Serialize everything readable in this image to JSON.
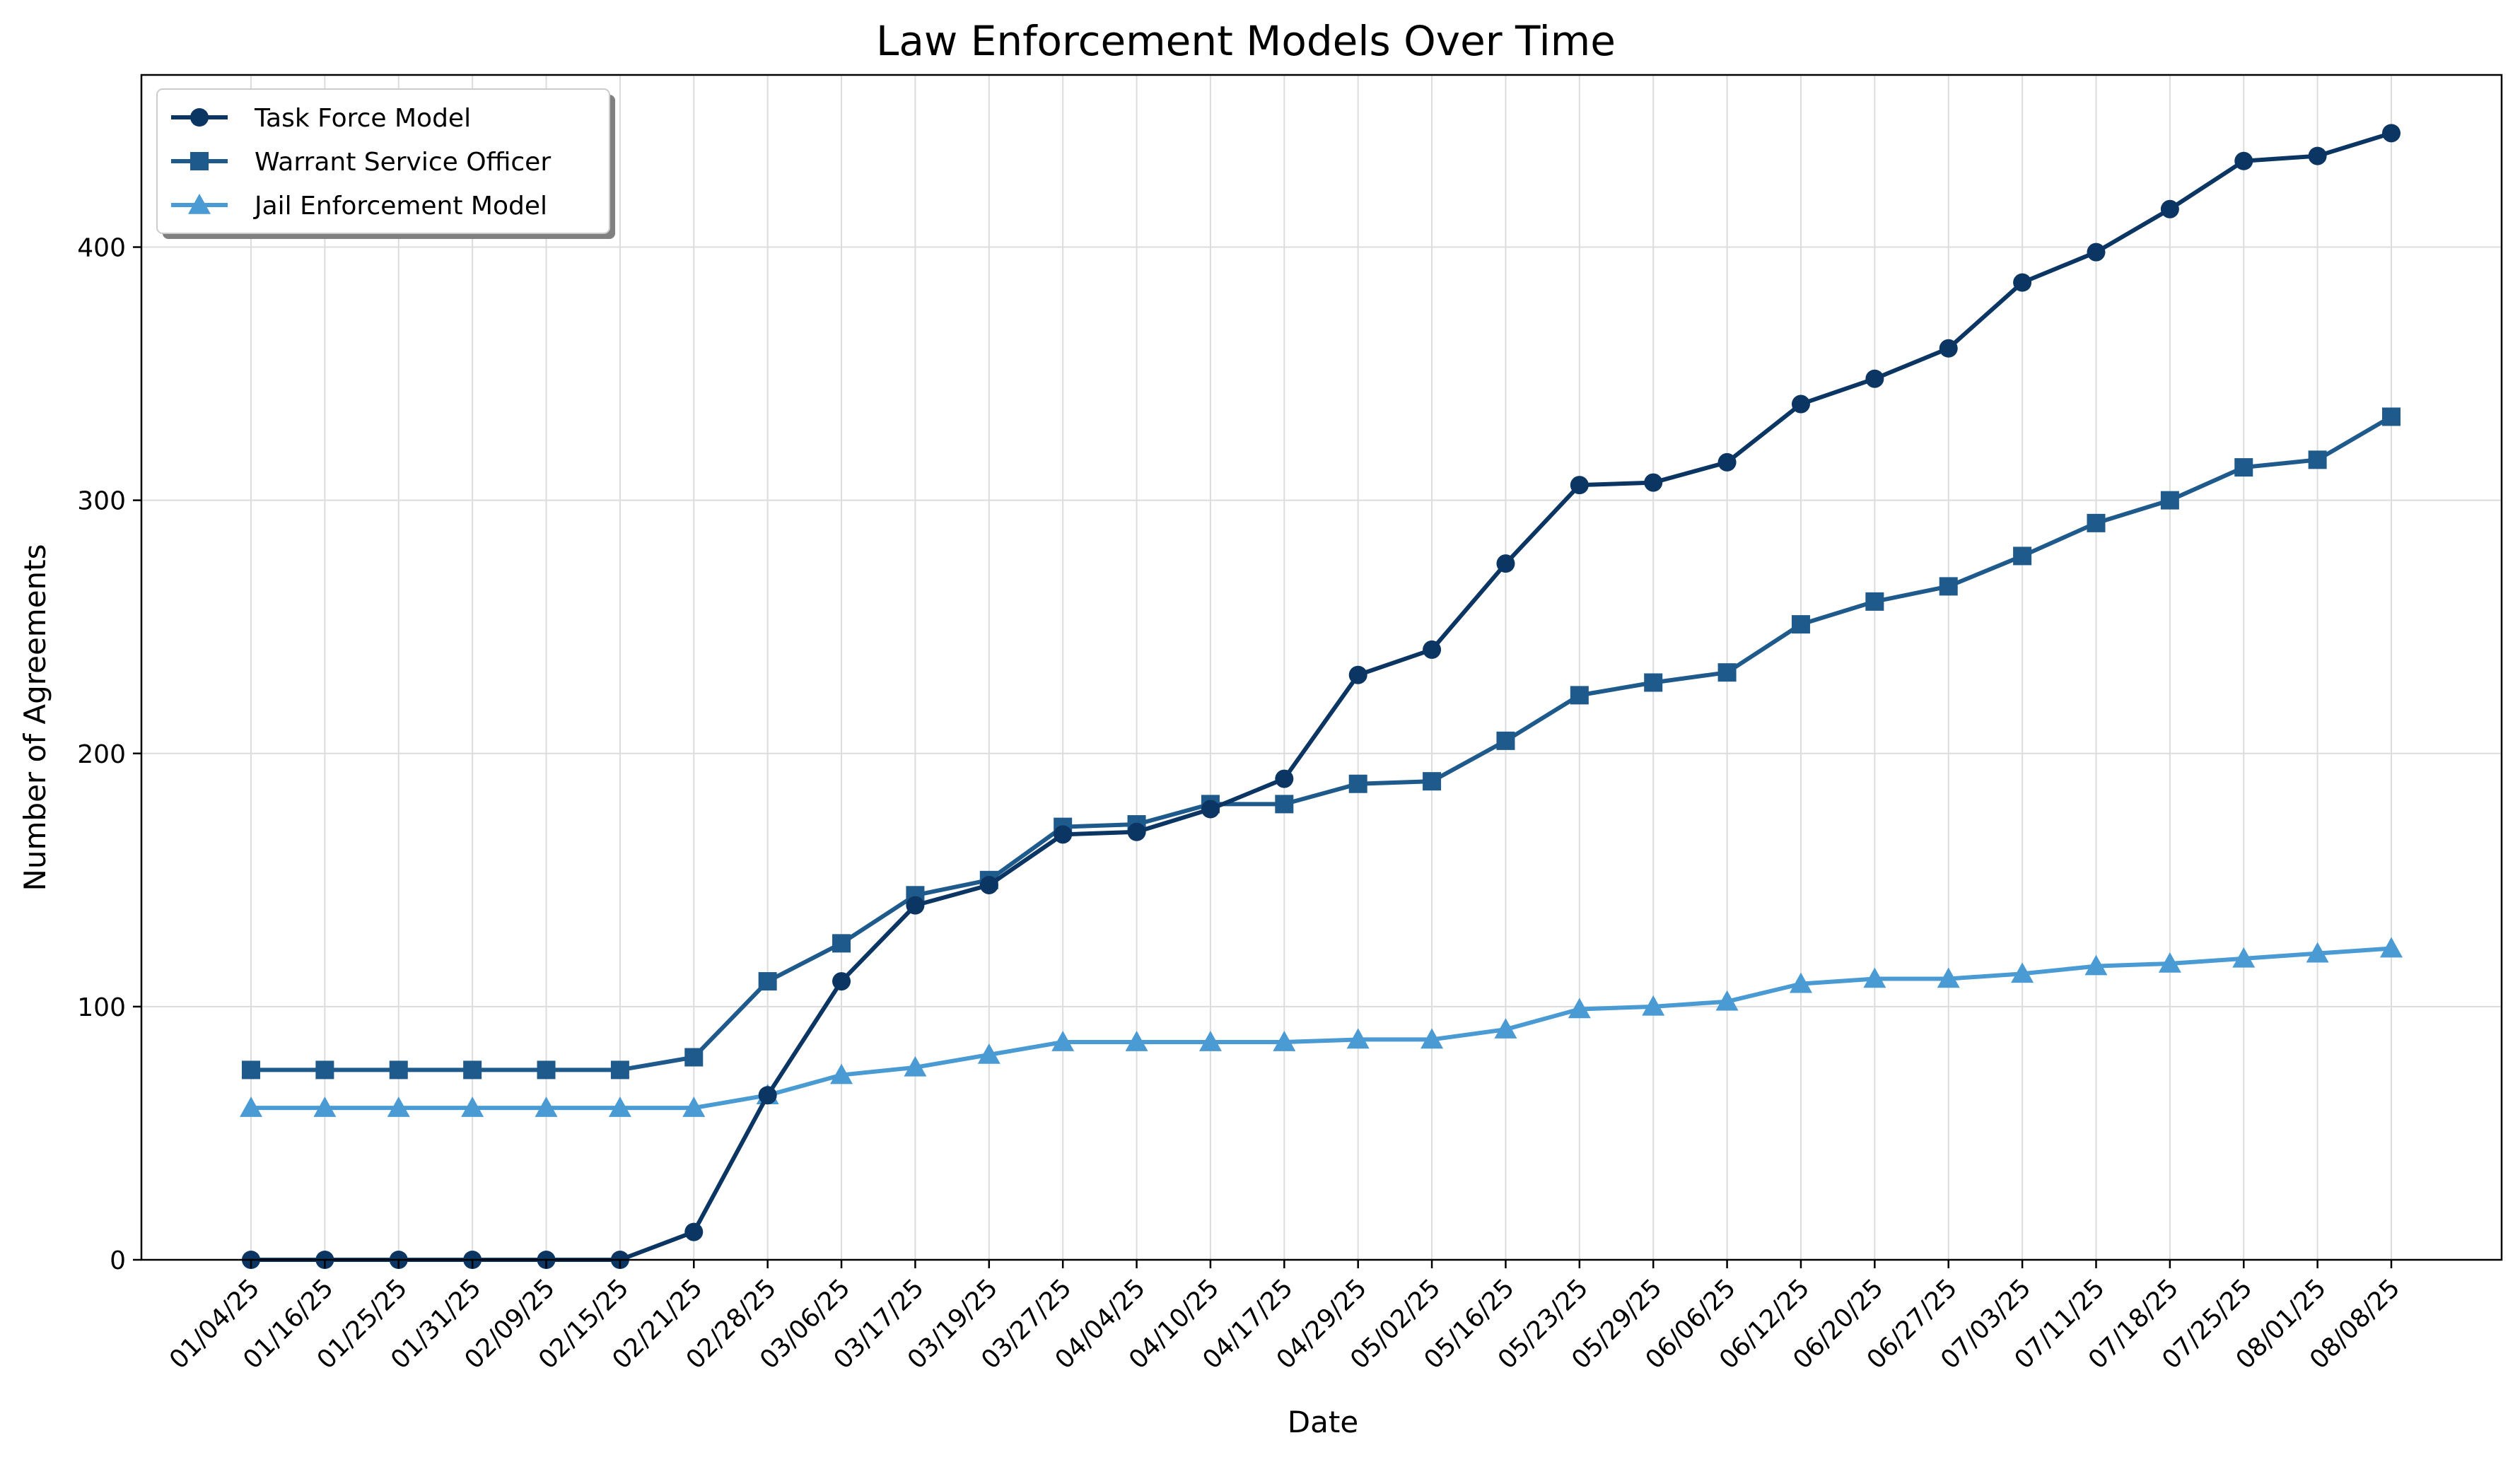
{
  "chart_data": {
    "type": "line",
    "title": "Law Enforcement Models Over Time",
    "xlabel": "Date",
    "ylabel": "Number of Agreements",
    "ylim": [
      0,
      468
    ],
    "yticks": [
      0,
      100,
      200,
      300,
      400
    ],
    "grid": true,
    "legend_position": "top-left",
    "categories": [
      "01/04/25",
      "01/16/25",
      "01/25/25",
      "01/31/25",
      "02/09/25",
      "02/15/25",
      "02/21/25",
      "02/28/25",
      "03/06/25",
      "03/17/25",
      "03/19/25",
      "03/27/25",
      "04/04/25",
      "04/10/25",
      "04/17/25",
      "04/29/25",
      "05/02/25",
      "05/16/25",
      "05/23/25",
      "05/29/25",
      "06/06/25",
      "06/12/25",
      "06/20/25",
      "06/27/25",
      "07/03/25",
      "07/11/25",
      "07/18/25",
      "07/25/25",
      "08/01/25",
      "08/08/25"
    ],
    "series": [
      {
        "name": "Task Force Model",
        "marker": "circle",
        "color": "#0b3563",
        "values": [
          0,
          0,
          0,
          0,
          0,
          0,
          11,
          65,
          110,
          140,
          148,
          168,
          169,
          178,
          190,
          231,
          241,
          275,
          306,
          307,
          315,
          338,
          348,
          360,
          386,
          398,
          415,
          434,
          436,
          445
        ]
      },
      {
        "name": "Warrant Service Officer",
        "marker": "square",
        "color": "#1f5a8c",
        "values": [
          75,
          75,
          75,
          75,
          75,
          75,
          80,
          110,
          125,
          144,
          150,
          171,
          172,
          180,
          180,
          188,
          189,
          205,
          223,
          228,
          232,
          251,
          260,
          266,
          278,
          291,
          300,
          313,
          316,
          333
        ]
      },
      {
        "name": "Jail Enforcement Model",
        "marker": "triangle",
        "color": "#4a9ad4",
        "values": [
          60,
          60,
          60,
          60,
          60,
          60,
          60,
          65,
          73,
          76,
          81,
          86,
          86,
          86,
          86,
          87,
          87,
          91,
          99,
          100,
          102,
          109,
          111,
          111,
          113,
          116,
          117,
          119,
          121,
          123
        ]
      }
    ]
  }
}
